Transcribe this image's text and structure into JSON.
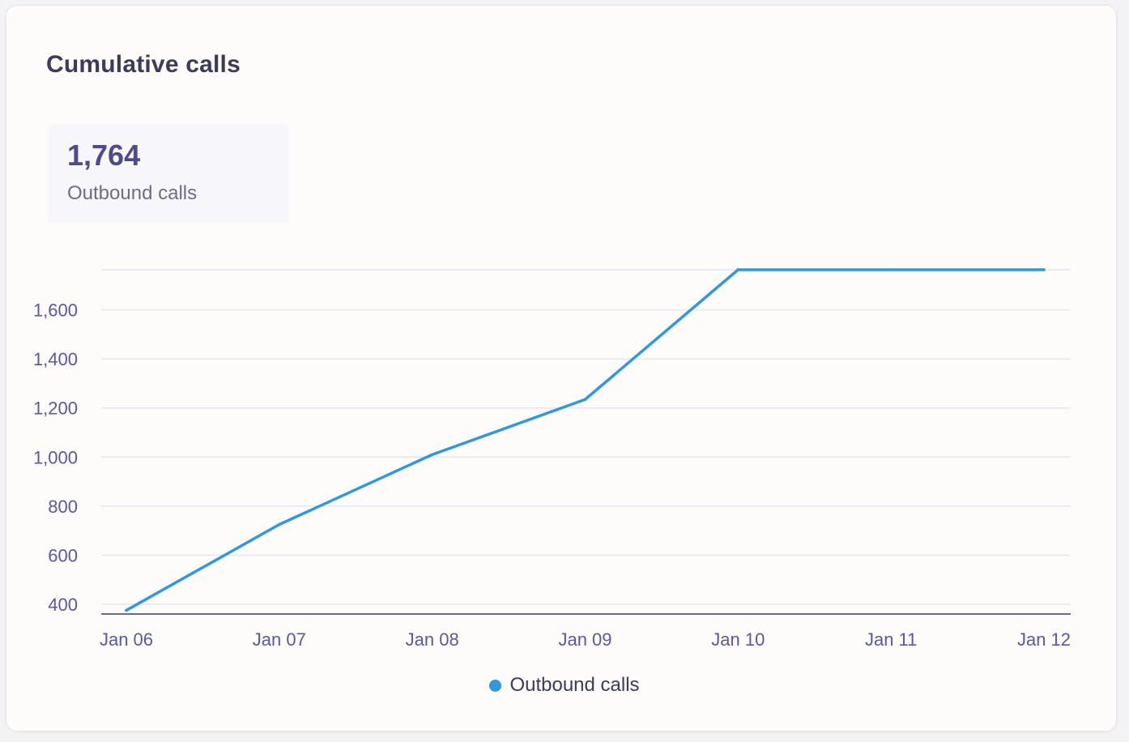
{
  "card": {
    "title": "Cumulative calls"
  },
  "summary": {
    "value": "1,764",
    "label": "Outbound calls"
  },
  "colors": {
    "series": "#3398db",
    "grid": "#e6e6f2",
    "axis": "#3d3b5c",
    "tick_text": "#5a58a2"
  },
  "chart_data": {
    "type": "line",
    "title": "",
    "xlabel": "",
    "ylabel": "",
    "categories": [
      "Jan 06",
      "Jan 07",
      "Jan 08",
      "Jan 09",
      "Jan 10",
      "Jan 11",
      "Jan 12"
    ],
    "y_ticks": [
      400,
      600,
      800,
      1000,
      1200,
      1400,
      1600
    ],
    "y_tick_labels": [
      "400",
      "600",
      "800",
      "1,000",
      "1,200",
      "1,400",
      "1,600"
    ],
    "ylim": [
      360,
      1764
    ],
    "grid": true,
    "legend_position": "bottom-center",
    "series": [
      {
        "name": "Outbound calls",
        "values": [
          375,
          725,
          1010,
          1235,
          1764,
          1764,
          1764
        ]
      }
    ]
  }
}
